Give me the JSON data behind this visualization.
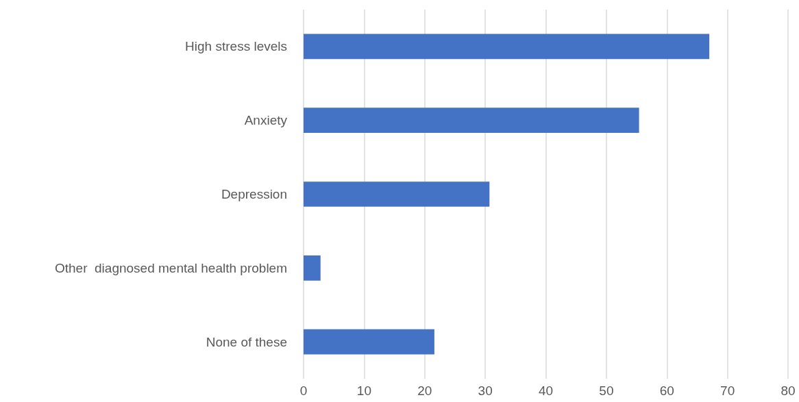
{
  "chart_data": {
    "type": "bar",
    "orientation": "horizontal",
    "categories": [
      "High stress levels",
      "Anxiety",
      "Depression",
      "Other  diagnosed mental health problem",
      "None of these"
    ],
    "values": [
      67,
      55.4,
      30.7,
      2.8,
      21.6
    ],
    "color": "#4472c4",
    "xlim": [
      0,
      80
    ],
    "xticks": [
      0,
      10,
      20,
      30,
      40,
      50,
      60,
      70,
      80
    ],
    "grid": "x"
  }
}
